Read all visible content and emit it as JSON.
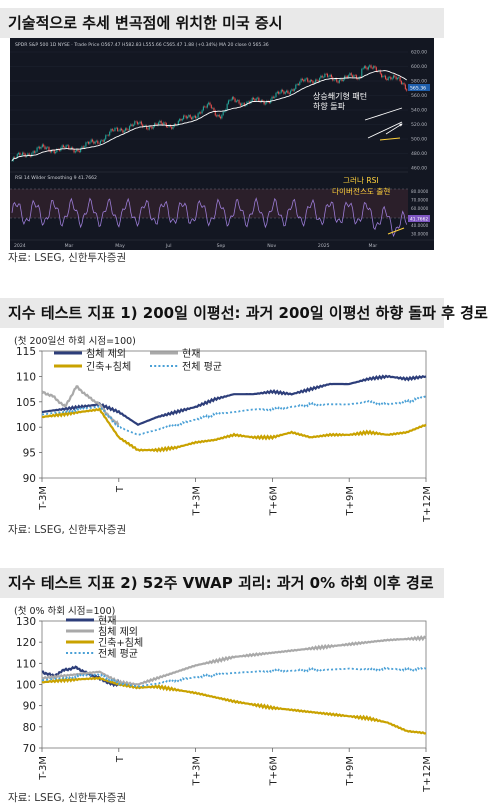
{
  "section1": {
    "title": "기술적으로 추세 변곡점에 위치한 미국 증시",
    "source": "자료: LSEG, 신한투자증권",
    "header_text": "SPDR S&P 500   1D   NYSE · Trade Price   O567.47  H582.83  L555.66  C565.47  1.88 (+0.34%)    MA 20 close 0    565.36",
    "rsi_label": "RSI 14 Wilder Smoothing 9  41.7662",
    "price_ticks": [
      "620.00",
      "600.00",
      "580.00",
      "560.00",
      "540.00",
      "520.00",
      "500.00",
      "480.00",
      "460.00"
    ],
    "rsi_ticks": [
      "80.0000",
      "70.0000",
      "60.0000",
      "50.0000",
      "40.0000",
      "30.0000"
    ],
    "x_ticks": [
      "2024",
      "Mar",
      "May",
      "Jul",
      "Sep",
      "Nov",
      "2025",
      "Mar"
    ],
    "last_price": "565.36",
    "last_rsi": "41.7662",
    "annotation_price": [
      "상승쐐기형 패턴",
      "하향 돌파"
    ],
    "annotation_rsi": [
      "그러나 RSI",
      "다이버전스도 출현"
    ],
    "colors": {
      "bg": "#131722",
      "up": "#26a69a",
      "down": "#ef5350",
      "ma": "#ffffff",
      "rsi": "#9c7cd6",
      "band": "#2b1f2a",
      "annot": "#ffd23c"
    }
  },
  "section2": {
    "title": "지수 테스트 지표 1) 200일 이평선: 과거 200일 이평선 하향 돌파 후 경로",
    "subnote": "(첫 200일선 하회 시점=100)",
    "source": "자료: LSEG, 신한투자증권"
  },
  "section3": {
    "title": "지수 테스트 지표 2) 52주 VWAP 괴리: 과거 0% 하회 이후 경로",
    "subnote": "(첫 0% 하회 시점=100)",
    "source": "자료: LSEG, 신한투자증권"
  },
  "chart_data": [
    {
      "type": "line",
      "title": "지수 테스트 지표 1) 200일 이평선: 과거 200일 이평선 하향 돌파 후 경로",
      "subtitle": "(첫 200일선 하회 시점=100)",
      "x_ticks": [
        "T-3M",
        "T",
        "T+3M",
        "T+6M",
        "T+9M",
        "T+12M"
      ],
      "ylim": [
        90,
        115
      ],
      "y_ticks": [
        90,
        95,
        100,
        105,
        110,
        115
      ],
      "legend_position": "top",
      "series": [
        {
          "name": "침체 제외",
          "color": "#2d3e7a",
          "style": "solid",
          "x": [
            0,
            5,
            10,
            15,
            20,
            25,
            30,
            35,
            40,
            45,
            50,
            55,
            60,
            65,
            70,
            75,
            80,
            85,
            90,
            95,
            100
          ],
          "values": [
            103,
            103.5,
            104,
            104.5,
            103,
            100.5,
            102,
            103,
            104,
            105.5,
            106.5,
            106.5,
            107,
            106.5,
            107.5,
            108.5,
            108.5,
            109.5,
            110,
            109.5,
            110
          ]
        },
        {
          "name": "현재",
          "color": "#a9a9a9",
          "style": "solid",
          "x": [
            0,
            3,
            6,
            9,
            12,
            15,
            17,
            19,
            20
          ],
          "values": [
            107,
            106,
            104,
            108,
            106,
            104.5,
            102.5,
            101,
            100.5
          ]
        },
        {
          "name": "긴축+침체",
          "color": "#c9a200",
          "style": "solid",
          "x": [
            0,
            5,
            10,
            15,
            20,
            25,
            30,
            35,
            40,
            45,
            50,
            55,
            60,
            65,
            70,
            75,
            80,
            85,
            90,
            95,
            100
          ],
          "values": [
            102,
            102.5,
            103,
            103.5,
            98,
            95.5,
            95.5,
            96,
            97,
            97.5,
            98.5,
            98,
            98,
            99,
            98,
            98.5,
            98.5,
            99,
            98.5,
            99,
            100.5
          ]
        },
        {
          "name": "전체 평균",
          "color": "#4aa0d6",
          "style": "dotted",
          "x": [
            0,
            5,
            10,
            15,
            20,
            25,
            30,
            35,
            40,
            45,
            50,
            55,
            60,
            65,
            70,
            75,
            80,
            85,
            90,
            95,
            100
          ],
          "values": [
            102.5,
            103,
            103.5,
            104,
            100,
            98.5,
            99.5,
            100.5,
            101.5,
            102.5,
            103,
            103.5,
            103.5,
            104,
            104.5,
            104.5,
            104.5,
            105,
            104.5,
            105,
            106
          ]
        }
      ]
    },
    {
      "type": "line",
      "title": "지수 테스트 지표 2) 52주 VWAP 괴리: 과거 0% 하회 이후 경로",
      "subtitle": "(첫 0% 하회 시점=100)",
      "x_ticks": [
        "T-3M",
        "T",
        "T+3M",
        "T+6M",
        "T+9M",
        "T+12M"
      ],
      "ylim": [
        70,
        130
      ],
      "y_ticks": [
        70,
        80,
        90,
        100,
        110,
        120,
        130
      ],
      "legend_position": "top",
      "series": [
        {
          "name": "현재",
          "color": "#2d3e7a",
          "style": "solid",
          "x": [
            0,
            3,
            6,
            9,
            12,
            15,
            17,
            19,
            20
          ],
          "values": [
            106,
            104,
            107,
            108,
            105,
            103,
            101,
            100,
            100.5
          ]
        },
        {
          "name": "침체 제외",
          "color": "#a9a9a9",
          "style": "solid",
          "x": [
            0,
            5,
            10,
            15,
            20,
            25,
            30,
            35,
            40,
            45,
            50,
            55,
            60,
            65,
            70,
            75,
            80,
            85,
            90,
            95,
            100
          ],
          "values": [
            103,
            104,
            105,
            106,
            101,
            100,
            103,
            106,
            109,
            111,
            113,
            114,
            115,
            116,
            117,
            118,
            119,
            120,
            121,
            121.5,
            122
          ]
        },
        {
          "name": "긴축+침체",
          "color": "#c9a200",
          "style": "solid",
          "x": [
            0,
            5,
            10,
            15,
            20,
            25,
            30,
            35,
            40,
            45,
            50,
            55,
            60,
            65,
            70,
            75,
            80,
            85,
            90,
            95,
            100
          ],
          "values": [
            101,
            102,
            102.5,
            103,
            100,
            98.5,
            99,
            97.5,
            96,
            94,
            92,
            90.5,
            89,
            88,
            87,
            86,
            85,
            84,
            82,
            78,
            77
          ]
        },
        {
          "name": "전체 평균",
          "color": "#4aa0d6",
          "style": "dotted",
          "x": [
            0,
            5,
            10,
            15,
            20,
            25,
            30,
            35,
            40,
            45,
            50,
            55,
            60,
            65,
            70,
            75,
            80,
            85,
            90,
            95,
            100
          ],
          "values": [
            102,
            103,
            104,
            104.5,
            100.5,
            99,
            100.5,
            102,
            103.5,
            104.5,
            105.5,
            106,
            106.5,
            106.5,
            107,
            107,
            107.5,
            107,
            107.5,
            107,
            107.5
          ]
        }
      ]
    }
  ]
}
